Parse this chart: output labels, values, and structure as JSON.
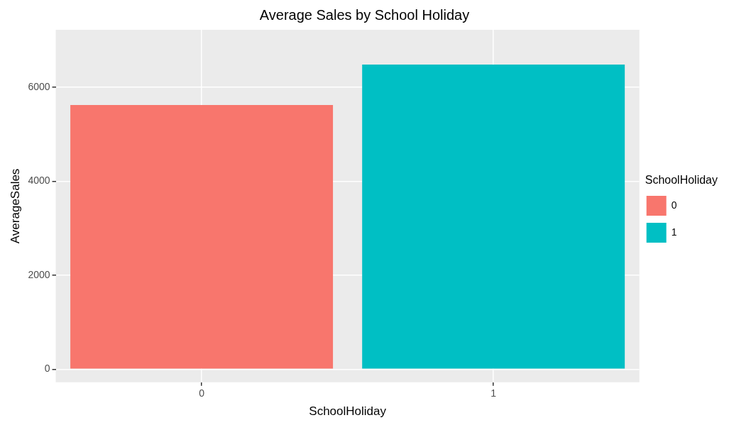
{
  "chart_data": {
    "type": "bar",
    "title": "Average Sales by School Holiday",
    "xlabel": "SchoolHoliday",
    "ylabel": "AverageSales",
    "legend_title": "SchoolHoliday",
    "categories": [
      "0",
      "1"
    ],
    "series": [
      {
        "name": "0",
        "color": "#f8766d",
        "values": [
          5620,
          null
        ]
      },
      {
        "name": "1",
        "color": "#00bfc4",
        "values": [
          null,
          6480
        ]
      }
    ],
    "ylim": [
      -280,
      7220
    ],
    "yticks": [
      0,
      2000,
      4000,
      6000
    ],
    "grid": true,
    "legend": "right"
  }
}
